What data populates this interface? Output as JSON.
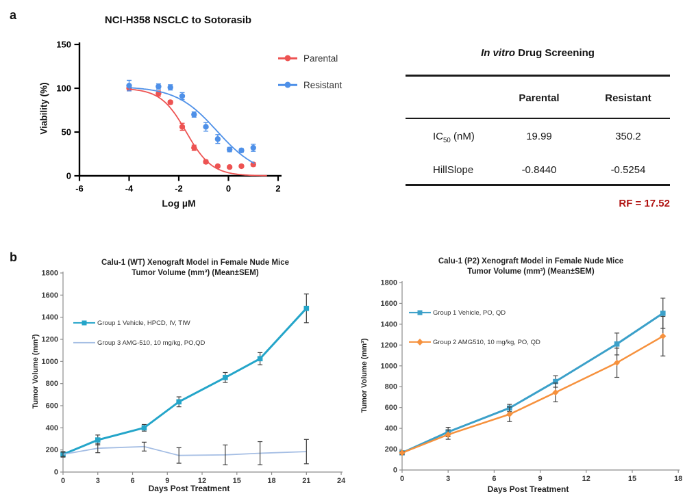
{
  "panels": {
    "a_label": "a",
    "b_label": "b"
  },
  "colors": {
    "rf_red": "#B01312",
    "error_bar": "#3F3F3F",
    "axis_gray": "#8C8C8C",
    "tick_text": "#3A3A3A"
  },
  "table": {
    "title_italic": "In vitro",
    "title_rest": " Drug Screening",
    "columns": [
      "Parental",
      "Resistant"
    ],
    "rows": [
      {
        "label_pre": "IC",
        "label_sub": "50",
        "label_post": " (nM)",
        "parental": "19.99",
        "resistant": "350.2"
      },
      {
        "label_pre": "HillSlope",
        "label_sub": "",
        "label_post": "",
        "parental": "-0.8440",
        "resistant": "-0.5254"
      }
    ],
    "rf_label": "RF = 17.52"
  },
  "chart_data": [
    {
      "type": "scatter",
      "title": "NCI-H358 NSCLC to Sotorasib",
      "xlabel": "Log µM",
      "ylabel": "Viability (%)",
      "xlim": [
        -6,
        2
      ],
      "ylim": [
        0,
        150
      ],
      "xticks": [
        -6,
        -4,
        -2,
        0,
        2
      ],
      "yticks": [
        0,
        50,
        100,
        150
      ],
      "legend_position": "right-top",
      "series": [
        {
          "name": "Parental",
          "color": "#ED5352",
          "marker": "circle",
          "x": [
            -4,
            -2.816,
            -2.339,
            -1.862,
            -1.385,
            -0.908,
            -0.431,
            0.046,
            0.523,
            1.0
          ],
          "y": [
            100,
            94,
            84,
            56,
            32,
            16,
            11,
            10,
            11,
            13
          ],
          "err": [
            3,
            3,
            2,
            4,
            3,
            2,
            1.5,
            1.5,
            1.5,
            2
          ],
          "fit": {
            "top": 100,
            "bottom": 0,
            "logIC50": -1.699,
            "hill": 0.844,
            "xmin": -4,
            "xmax": 1.55
          }
        },
        {
          "name": "Resistant",
          "color": "#4E90E8",
          "marker": "circle",
          "x": [
            -4,
            -2.816,
            -2.339,
            -1.862,
            -1.385,
            -0.908,
            -0.431,
            0.046,
            0.523,
            1.0
          ],
          "y": [
            103,
            102,
            101,
            91,
            70,
            56,
            42,
            30,
            29,
            32
          ],
          "err": [
            6,
            3,
            3,
            4,
            3,
            5,
            5,
            2.5,
            2,
            4
          ],
          "fit": {
            "top": 102,
            "bottom": 0,
            "logIC50": -0.456,
            "hill": 0.525,
            "xmin": -4,
            "xmax": 1.05
          }
        }
      ]
    },
    {
      "type": "line",
      "title_lines": [
        "Calu-1 (WT) Xenograft Model in Female Nude Mice",
        "Tumor Volume (mm³) (Mean±SEM)"
      ],
      "xlabel": "Days Post Treatment",
      "ylabel": "Tumor Volume (mm³)",
      "xlim": [
        0,
        24
      ],
      "ylim": [
        0,
        1800
      ],
      "xticks": [
        0,
        3,
        6,
        9,
        12,
        15,
        18,
        21,
        24
      ],
      "yticks": [
        0,
        200,
        400,
        600,
        800,
        1000,
        1200,
        1400,
        1600,
        1800
      ],
      "legend_position": "inside-left",
      "series": [
        {
          "name": "Group 1 Vehicle, HPCD, IV, TIW",
          "color": "#24A5C9",
          "marker": "square",
          "lw": 3,
          "x": [
            0,
            3,
            7,
            10,
            14,
            17,
            21
          ],
          "y": [
            160,
            290,
            400,
            635,
            855,
            1025,
            1480
          ],
          "err": [
            25,
            45,
            30,
            45,
            45,
            55,
            130
          ]
        },
        {
          "name": "Group 3 AMG-510, 10 mg/kg, PO,QD",
          "color": "#A5BEE4",
          "marker": "none",
          "lw": 1.8,
          "x": [
            0,
            3,
            7,
            10,
            14,
            17,
            21
          ],
          "y": [
            160,
            215,
            230,
            150,
            155,
            170,
            185
          ],
          "err": [
            20,
            40,
            40,
            70,
            90,
            105,
            110
          ]
        }
      ]
    },
    {
      "type": "line",
      "title_lines": [
        "Calu-1 (P2) Xenograft Model in Female Nude Mice",
        "Tumor Volume (mm³) (Mean±SEM)"
      ],
      "xlabel": "Days Post Treatment",
      "ylabel": "Tumor Volume (mm³)",
      "xlim": [
        0,
        18
      ],
      "ylim": [
        0,
        1800
      ],
      "xticks": [
        0,
        3,
        6,
        9,
        12,
        15,
        18
      ],
      "yticks": [
        0,
        200,
        400,
        600,
        800,
        1000,
        1200,
        1400,
        1600,
        1800
      ],
      "legend_position": "inside-left",
      "series": [
        {
          "name": "Group 1 Vehicle, PO, QD",
          "color": "#3BA0C9",
          "marker": "square",
          "lw": 3,
          "x": [
            0,
            3,
            7,
            10,
            14,
            17
          ],
          "y": [
            165,
            365,
            595,
            850,
            1210,
            1505
          ],
          "err": [
            15,
            45,
            35,
            55,
            105,
            145
          ]
        },
        {
          "name": "Group 2 AMG510, 10 mg/kg, PO, QD",
          "color": "#F6913D",
          "marker": "diamond",
          "lw": 2.5,
          "x": [
            0,
            3,
            7,
            10,
            14,
            17
          ],
          "y": [
            165,
            340,
            535,
            745,
            1030,
            1285
          ],
          "err": [
            15,
            45,
            70,
            90,
            140,
            190
          ]
        }
      ]
    }
  ]
}
